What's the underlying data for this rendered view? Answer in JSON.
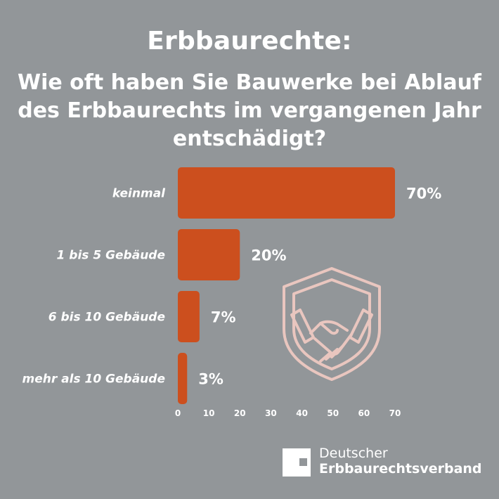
{
  "header": {
    "title": "Erbbaurechte:",
    "question": "Wie oft haben Sie Bauwerke bei Ablauf des Erbbaurechts im vergangenen Jahr entschädigt?"
  },
  "chart_data": {
    "type": "bar",
    "orientation": "horizontal",
    "categories": [
      "keinmal",
      "1 bis 5 Gebäude",
      "6 bis 10 Gebäude",
      "mehr als 10 Gebäude"
    ],
    "values": [
      70,
      20,
      7,
      3
    ],
    "value_labels": [
      "70%",
      "20%",
      "7%",
      "3%"
    ],
    "xlim": [
      0,
      70
    ],
    "x_ticks": [
      0,
      10,
      20,
      30,
      40,
      50,
      60,
      70
    ],
    "grid": false,
    "bar_color": "#cc4f1e",
    "title": "Erbbaurechte:",
    "subtitle": "Wie oft haben Sie Bauwerke bei Ablauf des Erbbaurechts im vergangenen Jahr entschädigt?"
  },
  "illustration": {
    "icon": "handshake-shield-icon",
    "color": "#e9c6bf"
  },
  "brand": {
    "line1": "Deutscher",
    "line2": "Erbbaurechtsverband",
    "logo_icon": "square-logo-icon"
  },
  "colors": {
    "background": "#929699",
    "text": "#ffffff"
  }
}
